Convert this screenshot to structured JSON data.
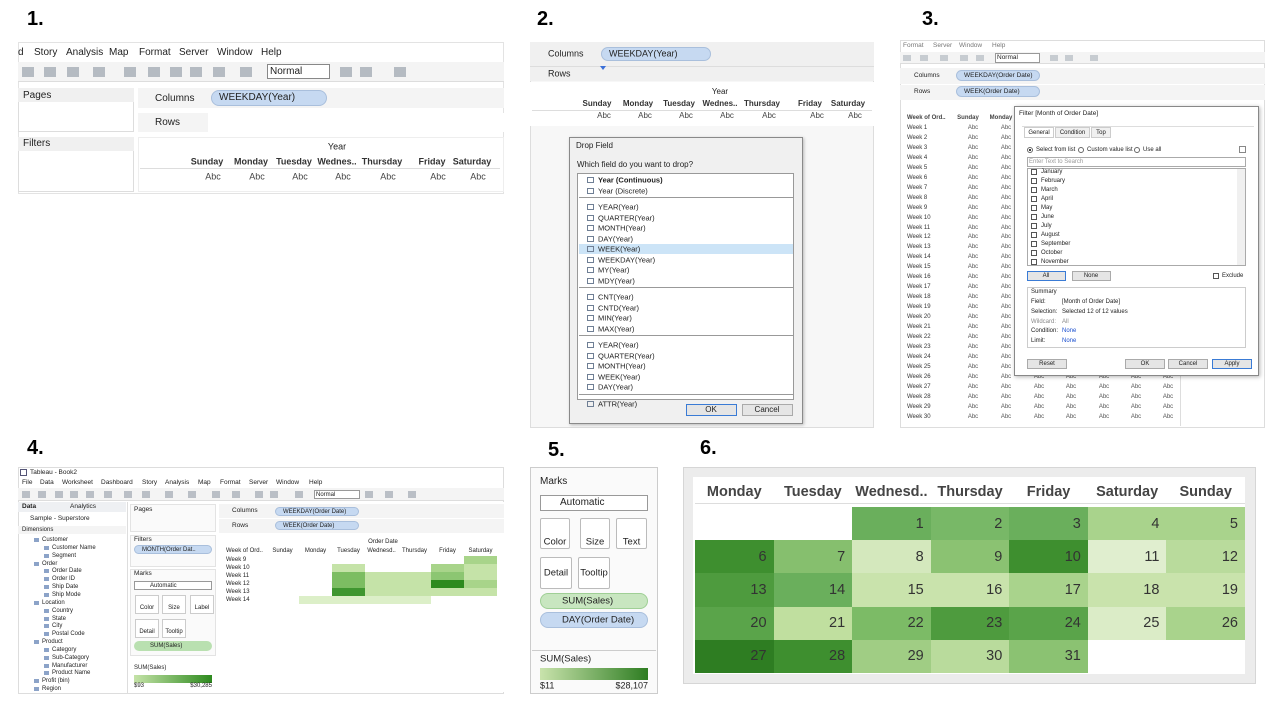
{
  "labels": [
    "1.",
    "2.",
    "3.",
    "4.",
    "5.",
    "6."
  ],
  "panel1": {
    "menu": [
      "d",
      "Story",
      "Analysis",
      "Map",
      "Format",
      "Server",
      "Window",
      "Help"
    ],
    "view_select": "Normal",
    "pages": "Pages",
    "filters": "Filters",
    "columns": "Columns",
    "columns_pill": "WEEKDAY(Year)",
    "rows": "Rows",
    "header": "Year",
    "days": [
      "Sunday",
      "Monday",
      "Tuesday",
      "Wednes..",
      "Thursday",
      "Friday",
      "Saturday"
    ],
    "cell": "Abc"
  },
  "panel2": {
    "columns": "Columns",
    "columns_pill": "WEEKDAY(Year)",
    "rows": "Rows",
    "header": "Year",
    "days": [
      "Sunday",
      "Monday",
      "Tuesday",
      "Wednes..",
      "Thursday",
      "Friday",
      "Saturday"
    ],
    "cell": "Abc",
    "dialog": {
      "title": "Drop Field",
      "question": "Which field do you want to drop?",
      "groups": [
        [
          "Year (Continuous)",
          "Year (Discrete)"
        ],
        [
          "YEAR(Year)",
          "QUARTER(Year)",
          "MONTH(Year)",
          "DAY(Year)",
          "WEEK(Year)",
          "WEEKDAY(Year)",
          "MY(Year)",
          "MDY(Year)"
        ],
        [
          "CNT(Year)",
          "CNTD(Year)",
          "MIN(Year)",
          "MAX(Year)"
        ],
        [
          "YEAR(Year)",
          "QUARTER(Year)",
          "MONTH(Year)",
          "WEEK(Year)",
          "DAY(Year)"
        ],
        [
          "ATTR(Year)"
        ]
      ],
      "ok": "OK",
      "cancel": "Cancel"
    }
  },
  "panel3": {
    "menu": [
      "Format",
      "Server",
      "Window",
      "Help"
    ],
    "view_select": "Normal",
    "columns": "Columns",
    "columns_pill": "WEEKDAY(Order Date)",
    "rows": "Rows",
    "rows_pill": "WEEK(Order Date)",
    "row_header": "Week of Ord..",
    "days": [
      "Sunday",
      "Monday"
    ],
    "weeks": [
      "Week 1",
      "Week 2",
      "Week 3",
      "Week 4",
      "Week 5",
      "Week 6",
      "Week 7",
      "Week 8",
      "Week 9",
      "Week 10",
      "Week 11",
      "Week 12",
      "Week 13",
      "Week 14",
      "Week 15",
      "Week 16",
      "Week 17",
      "Week 18",
      "Week 19",
      "Week 20",
      "Week 21",
      "Week 22",
      "Week 23",
      "Week 24",
      "Week 25",
      "Week 26",
      "Week 27",
      "Week 28",
      "Week 29",
      "Week 30"
    ],
    "cell": "Abc",
    "filter": {
      "title": "Filter [Month of Order Date]",
      "tabs": [
        "General",
        "Condition",
        "Top"
      ],
      "modes": [
        "Select from list",
        "Custom value list",
        "Use all"
      ],
      "search": "Enter Text to Search",
      "months": [
        "January",
        "February",
        "March",
        "April",
        "May",
        "June",
        "July",
        "August",
        "September",
        "October",
        "November"
      ],
      "all": "All",
      "none": "None",
      "exclude": "Exclude",
      "summary": {
        "title": "Summary",
        "rows": [
          [
            "Field:",
            "[Month of Order Date]"
          ],
          [
            "Selection:",
            "Selected 12 of 12 values"
          ],
          [
            "Wildcard:",
            "All"
          ],
          [
            "Condition:",
            "None"
          ],
          [
            "Limit:",
            "None"
          ]
        ]
      },
      "buttons": [
        "Reset",
        "OK",
        "Cancel",
        "Apply"
      ]
    }
  },
  "panel4": {
    "title": "Tableau - Book2",
    "menu": [
      "File",
      "Data",
      "Worksheet",
      "Dashboard",
      "Story",
      "Analysis",
      "Map",
      "Format",
      "Server",
      "Window",
      "Help"
    ],
    "view_select": "Normal",
    "tabs": [
      "Data",
      "Analytics"
    ],
    "source": "Sample - Superstore",
    "dimensions": "Dimensions",
    "fields": [
      {
        "label": "Customer",
        "level": 1
      },
      {
        "label": "Customer Name",
        "level": 2
      },
      {
        "label": "Segment",
        "level": 2
      },
      {
        "label": "Order",
        "level": 1
      },
      {
        "label": "Order Date",
        "level": 2
      },
      {
        "label": "Order ID",
        "level": 2
      },
      {
        "label": "Ship Date",
        "level": 2
      },
      {
        "label": "Ship Mode",
        "level": 2
      },
      {
        "label": "Location",
        "level": 1
      },
      {
        "label": "Country",
        "level": 2
      },
      {
        "label": "State",
        "level": 2
      },
      {
        "label": "City",
        "level": 2
      },
      {
        "label": "Postal Code",
        "level": 2
      },
      {
        "label": "Product",
        "level": 1
      },
      {
        "label": "Category",
        "level": 2
      },
      {
        "label": "Sub-Category",
        "level": 2
      },
      {
        "label": "Manufacturer",
        "level": 2
      },
      {
        "label": "Product Name",
        "level": 2
      },
      {
        "label": "Profit (bin)",
        "level": 1
      },
      {
        "label": "Region",
        "level": 1
      }
    ],
    "pages": "Pages",
    "filters": "Filters",
    "filter_pill": "MONTH(Order Dat..",
    "marks": "Marks",
    "mark_type": "Automatic",
    "mark_buttons": [
      "Color",
      "Size",
      "Label",
      "Detail",
      "Tooltip"
    ],
    "mark_pill": "SUM(Sales)",
    "legend": {
      "title": "SUM(Sales)",
      "min": "$93",
      "max": "$30,285"
    },
    "columns": "Columns",
    "columns_pill": "WEEKDAY(Order Date)",
    "rows": "Rows",
    "rows_pill": "WEEK(Order Date)",
    "header": "Order Date",
    "row_header": "Week of Ord..",
    "days": [
      "Sunday",
      "Monday",
      "Tuesday",
      "Wednesd..",
      "Thursday",
      "Friday",
      "Saturday"
    ],
    "weeks": [
      "Week 9",
      "Week 10",
      "Week 11",
      "Week 12",
      "Week 13",
      "Week 14"
    ],
    "heat": [
      [
        null,
        null,
        null,
        null,
        null,
        null,
        "#a8d48a"
      ],
      [
        null,
        null,
        "#c5e3a8",
        null,
        null,
        "#a8d48a",
        "#c5e3a8"
      ],
      [
        null,
        null,
        "#7cbd62",
        "#c5e3a8",
        "#c5e3a8",
        "#8cc672",
        "#c5e3a8"
      ],
      [
        null,
        null,
        "#7cbd62",
        "#c5e3a8",
        "#c5e3a8",
        "#2d8a1e",
        "#a8d48a"
      ],
      [
        null,
        null,
        "#3f9630",
        "#c5e3a8",
        "#c5e3a8",
        "#c5e3a8",
        "#c5e3a8"
      ],
      [
        null,
        "#dcefc8",
        "#dcefc8",
        "#dcefc8",
        "#dcefc8",
        null,
        null
      ]
    ]
  },
  "panel5": {
    "title": "Marks",
    "mark_type": "Automatic",
    "buttons": [
      "Color",
      "Size",
      "Text",
      "Detail",
      "Tooltip"
    ],
    "pills": [
      "SUM(Sales)",
      "DAY(Order Date)"
    ],
    "legend": {
      "title": "SUM(Sales)",
      "min": "$11",
      "max": "$28,107"
    }
  },
  "panel6": {
    "days": [
      "Monday",
      "Tuesday",
      "Wednesd..",
      "Thursday",
      "Friday",
      "Saturday",
      "Sunday"
    ],
    "dates": [
      1,
      2,
      3,
      4,
      5,
      6,
      7,
      8,
      9,
      10,
      11,
      12,
      13,
      14,
      15,
      16,
      17,
      18,
      19,
      20,
      21,
      22,
      23,
      24,
      25,
      26,
      27,
      28,
      29,
      30,
      31
    ],
    "colors": [
      "#6aaf5c",
      "#78b867",
      "#6aaf5c",
      "#a9d38c",
      "#a9d38c",
      "#3e8f2f",
      "#86bf6e",
      "#d4e8bd",
      "#8bc272",
      "#3e8f2f",
      "#e0eecf",
      "#b9db9c",
      "#4e9b3e",
      "#6aaf5c",
      "#c9e3ac",
      "#c9e3ac",
      "#a9d38c",
      "#c9e3ac",
      "#c9e3ac",
      "#5aa44a",
      "#c0df9f",
      "#7cbb66",
      "#4e9b3e",
      "#5aa44a",
      "#dbecc7",
      "#a9d38c",
      "#2e7d22",
      "#3e8f2f",
      "#a0cd84",
      "#b9db9c",
      "#8bc272"
    ]
  }
}
